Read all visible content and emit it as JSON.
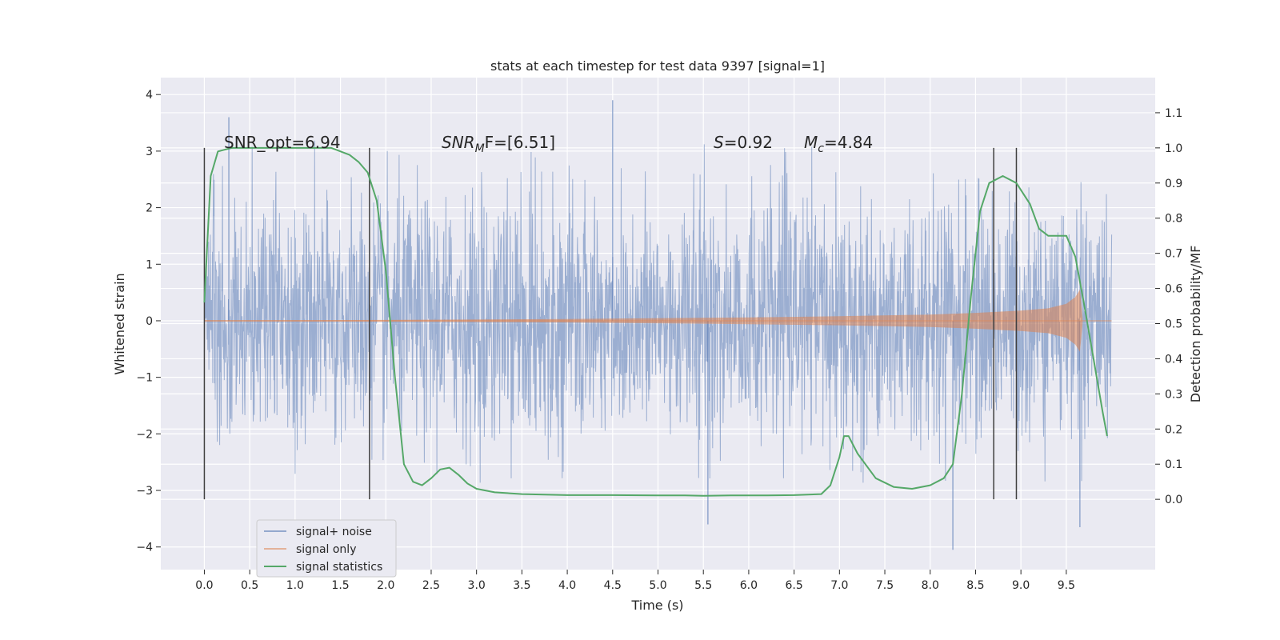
{
  "chart_data": {
    "type": "line",
    "title": "stats at each timestep for test data 9397 [signal=1]",
    "xlabel": "Time (s)",
    "ylabel": "Whitened strain",
    "ylabel_right": "Detection probability/MF",
    "xlim": [
      -0.48,
      10.48
    ],
    "ylim": [
      -4.4,
      4.3
    ],
    "ylim_right": [
      -0.2,
      1.2
    ],
    "x_ticks": [
      "0.0",
      "0.5",
      "1.0",
      "1.5",
      "2.0",
      "2.5",
      "3.0",
      "3.5",
      "4.0",
      "4.5",
      "5.0",
      "5.5",
      "6.0",
      "6.5",
      "7.0",
      "7.5",
      "8.0",
      "8.5",
      "9.0",
      "9.5"
    ],
    "y_ticks": [
      "4",
      "3",
      "2",
      "1",
      "0",
      "−1",
      "−2",
      "−3",
      "−4"
    ],
    "y_ticks_right": [
      "1.1",
      "1.0",
      "0.9",
      "0.8",
      "0.7",
      "0.6",
      "0.5",
      "0.4",
      "0.3",
      "0.2",
      "0.1",
      "0.0"
    ],
    "grid": true,
    "legend_position": "lower-left",
    "legend": [
      "signal+ noise",
      "signal only",
      "signal statistics"
    ],
    "annotations": {
      "snr_opt": "SNR_opt=6.94",
      "snr_mf_base": "SNR",
      "snr_mf_sub": "M",
      "snr_mf_tail": "F=[6.51]",
      "s_base": "S",
      "s_tail": "=0.92",
      "mc_base": "M",
      "mc_sub": "c",
      "mc_tail": "=4.84"
    },
    "vertical_markers": [
      0.0,
      1.82,
      8.7,
      8.95
    ],
    "series": [
      {
        "name": "signal+ noise",
        "color": "#4c72b0",
        "t_range": [
          0.0,
          10.0
        ],
        "noise_envelope": [
          -2.9,
          3.2
        ],
        "notable_extremes": [
          [
            0.27,
            3.6
          ],
          [
            4.5,
            3.9
          ],
          [
            5.55,
            -3.6
          ],
          [
            8.25,
            -4.05
          ],
          [
            9.65,
            -3.65
          ]
        ]
      },
      {
        "name": "signal only",
        "color": "#dd8452",
        "t": [
          0.0,
          2.0,
          4.0,
          6.0,
          7.0,
          8.0,
          8.5,
          9.0,
          9.3,
          9.5,
          9.6,
          9.65,
          9.68
        ],
        "amplitude": [
          0.01,
          0.015,
          0.03,
          0.06,
          0.08,
          0.11,
          0.14,
          0.18,
          0.22,
          0.3,
          0.42,
          0.55,
          0.05
        ]
      },
      {
        "name": "signal statistics",
        "color": "#55a868",
        "x": [
          0.0,
          0.07,
          0.15,
          0.3,
          0.6,
          1.0,
          1.4,
          1.6,
          1.7,
          1.8,
          1.9,
          2.0,
          2.1,
          2.2,
          2.3,
          2.4,
          2.5,
          2.6,
          2.7,
          2.8,
          2.9,
          3.0,
          3.2,
          3.5,
          4.0,
          4.5,
          5.0,
          5.3,
          5.5,
          5.8,
          6.2,
          6.5,
          6.8,
          6.9,
          7.0,
          7.05,
          7.1,
          7.2,
          7.4,
          7.6,
          7.8,
          8.0,
          8.15,
          8.25,
          8.35,
          8.45,
          8.55,
          8.65,
          8.8,
          8.95,
          9.1,
          9.2,
          9.3,
          9.4,
          9.5,
          9.6,
          9.7,
          9.8,
          9.9,
          9.95
        ],
        "y": [
          0.56,
          0.92,
          0.99,
          1.0,
          1.0,
          1.0,
          1.0,
          0.98,
          0.96,
          0.93,
          0.85,
          0.65,
          0.35,
          0.1,
          0.05,
          0.04,
          0.06,
          0.085,
          0.09,
          0.07,
          0.045,
          0.03,
          0.02,
          0.015,
          0.012,
          0.012,
          0.011,
          0.011,
          0.01,
          0.011,
          0.011,
          0.012,
          0.015,
          0.04,
          0.12,
          0.18,
          0.18,
          0.13,
          0.06,
          0.035,
          0.03,
          0.04,
          0.06,
          0.1,
          0.3,
          0.58,
          0.82,
          0.9,
          0.92,
          0.9,
          0.84,
          0.77,
          0.75,
          0.75,
          0.75,
          0.69,
          0.55,
          0.4,
          0.25,
          0.18
        ]
      }
    ]
  }
}
